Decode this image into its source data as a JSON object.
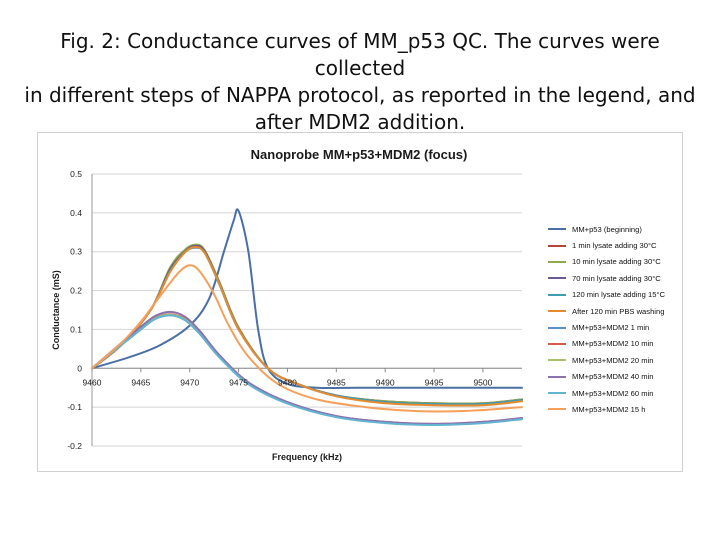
{
  "caption": {
    "line1": "Fig. 2: Conductance curves of MM_p53 QC. The curves were collected",
    "line2": "in different steps of NAPPA protocol, as reported in the legend, and",
    "line3": "after MDM2 addition."
  },
  "chart_data": {
    "type": "line",
    "title": "Nanoprobe MM+p53+MDM2 (focus)",
    "xlabel": "Frequency (kHz)",
    "ylabel": "Conductance (mS)",
    "xlim": [
      9460,
      9504
    ],
    "ylim": [
      -0.2,
      0.5
    ],
    "x_ticks": [
      9460,
      9465,
      9470,
      9475,
      9480,
      9485,
      9490,
      9495,
      9500
    ],
    "y_ticks": [
      0.5,
      0.4,
      0.3,
      0.2,
      0.1,
      0,
      -0.1,
      -0.2
    ],
    "x_tick_labels": [
      "9460",
      "9465",
      "9470",
      "9475",
      "9480",
      "9485",
      "9490",
      "9495",
      "9500"
    ],
    "y_tick_labels": [
      "0.5",
      "0.4",
      "0.3",
      "0.2",
      "0.1",
      "0",
      "-0.1",
      "-0.2"
    ],
    "legend_position": "right",
    "series": [
      {
        "name": "MM+p53 (beginning)",
        "color": "#4a6fa5",
        "x": [
          9460,
          9464,
          9467,
          9470,
          9472,
          9473.5,
          9474.5,
          9475,
          9476,
          9477,
          9478,
          9480,
          9483,
          9487,
          9491,
          9495,
          9500,
          9504
        ],
        "y": [
          0,
          0.03,
          0.06,
          0.11,
          0.18,
          0.3,
          0.38,
          0.405,
          0.3,
          0.1,
          0.0,
          -0.04,
          -0.05,
          -0.05,
          -0.05,
          -0.05,
          -0.05,
          -0.05
        ]
      },
      {
        "name": "1 min lysate adding 30°C",
        "color": "#b5443c",
        "x": [
          9460,
          9463,
          9466,
          9468,
          9469.5,
          9470.5,
          9471.5,
          9473,
          9475,
          9478,
          9481,
          9485,
          9490,
          9495,
          9500,
          9504
        ],
        "y": [
          0,
          0.06,
          0.15,
          0.25,
          0.3,
          0.312,
          0.3,
          0.22,
          0.1,
          0.0,
          -0.04,
          -0.07,
          -0.085,
          -0.09,
          -0.09,
          -0.08
        ]
      },
      {
        "name": "10 min lysate adding 30°C",
        "color": "#8eaa4a",
        "x": [
          9460,
          9463,
          9466,
          9468,
          9469.5,
          9470.5,
          9471.5,
          9473,
          9475,
          9478,
          9481,
          9485,
          9490,
          9495,
          9500,
          9504
        ],
        "y": [
          0,
          0.06,
          0.15,
          0.26,
          0.305,
          0.318,
          0.305,
          0.225,
          0.105,
          0.0,
          -0.04,
          -0.07,
          -0.085,
          -0.09,
          -0.09,
          -0.08
        ]
      },
      {
        "name": "70 min lysate adding 30°C",
        "color": "#6c5a92",
        "x": [
          9460,
          9463,
          9466,
          9468,
          9469.5,
          9470.5,
          9471.5,
          9473,
          9475,
          9478,
          9481,
          9485,
          9490,
          9495,
          9500,
          9504
        ],
        "y": [
          0,
          0.06,
          0.15,
          0.255,
          0.3,
          0.315,
          0.302,
          0.222,
          0.102,
          0.0,
          -0.04,
          -0.07,
          -0.087,
          -0.092,
          -0.092,
          -0.082
        ]
      },
      {
        "name": "120 min lysate adding 15°C",
        "color": "#3e9db5",
        "x": [
          9460,
          9463,
          9466,
          9468,
          9469.5,
          9470.5,
          9471.5,
          9473,
          9475,
          9478,
          9481,
          9485,
          9490,
          9495,
          9500,
          9504
        ],
        "y": [
          0,
          0.06,
          0.15,
          0.25,
          0.298,
          0.31,
          0.298,
          0.218,
          0.1,
          0.0,
          -0.04,
          -0.07,
          -0.087,
          -0.092,
          -0.092,
          -0.082
        ]
      },
      {
        "name": "After 120 min PBS washing",
        "color": "#e58b2e",
        "x": [
          9460,
          9463,
          9466,
          9468,
          9469.5,
          9470.5,
          9471.5,
          9473,
          9475,
          9478,
          9481,
          9485,
          9490,
          9495,
          9500,
          9504
        ],
        "y": [
          0,
          0.06,
          0.15,
          0.248,
          0.298,
          0.312,
          0.298,
          0.22,
          0.1,
          0.0,
          -0.04,
          -0.072,
          -0.09,
          -0.095,
          -0.095,
          -0.085
        ]
      },
      {
        "name": "MM+p53+MDM2 1 min",
        "color": "#5b8fc9",
        "x": [
          9460,
          9463,
          9465,
          9466.5,
          9468,
          9469.5,
          9471,
          9473,
          9476,
          9480,
          9485,
          9490,
          9495,
          9500,
          9504
        ],
        "y": [
          0,
          0.06,
          0.1,
          0.128,
          0.137,
          0.125,
          0.09,
          0.03,
          -0.04,
          -0.09,
          -0.125,
          -0.14,
          -0.145,
          -0.14,
          -0.13
        ]
      },
      {
        "name": "MM+p53+MDM2 10 min",
        "color": "#d65a4e",
        "x": [
          9460,
          9463,
          9465,
          9466.5,
          9468,
          9469.5,
          9471,
          9473,
          9476,
          9480,
          9485,
          9490,
          9495,
          9500,
          9504
        ],
        "y": [
          0,
          0.062,
          0.102,
          0.13,
          0.139,
          0.127,
          0.092,
          0.032,
          -0.038,
          -0.088,
          -0.123,
          -0.138,
          -0.143,
          -0.138,
          -0.128
        ]
      },
      {
        "name": "MM+p53+MDM2 20 min",
        "color": "#a9c16a",
        "x": [
          9460,
          9463,
          9465,
          9466.5,
          9468,
          9469.5,
          9471,
          9473,
          9476,
          9480,
          9485,
          9490,
          9495,
          9500,
          9504
        ],
        "y": [
          0,
          0.061,
          0.101,
          0.129,
          0.138,
          0.126,
          0.091,
          0.031,
          -0.039,
          -0.089,
          -0.124,
          -0.139,
          -0.144,
          -0.139,
          -0.129
        ]
      },
      {
        "name": "MM+p53+MDM2 40 min",
        "color": "#8a72b0",
        "x": [
          9460,
          9463,
          9465,
          9466.5,
          9468,
          9469.5,
          9471,
          9473,
          9476,
          9480,
          9485,
          9490,
          9495,
          9500,
          9504
        ],
        "y": [
          0,
          0.065,
          0.107,
          0.135,
          0.145,
          0.133,
          0.097,
          0.035,
          -0.036,
          -0.087,
          -0.123,
          -0.138,
          -0.143,
          -0.138,
          -0.128
        ]
      },
      {
        "name": "MM+p53+MDM2 60 min",
        "color": "#62b4d0",
        "x": [
          9460,
          9463,
          9465,
          9466.5,
          9468,
          9469.5,
          9471,
          9473,
          9476,
          9480,
          9485,
          9490,
          9495,
          9500,
          9504
        ],
        "y": [
          0,
          0.06,
          0.1,
          0.127,
          0.136,
          0.124,
          0.089,
          0.029,
          -0.041,
          -0.091,
          -0.126,
          -0.141,
          -0.146,
          -0.141,
          -0.131
        ]
      },
      {
        "name": "MM+p53+MDM2 15 h",
        "color": "#f5a05a",
        "x": [
          9460,
          9463,
          9465,
          9466.5,
          9468,
          9469,
          9470,
          9471,
          9472.5,
          9474,
          9476,
          9479,
          9483,
          9488,
          9493,
          9498,
          9504
        ],
        "y": [
          0,
          0.065,
          0.12,
          0.17,
          0.22,
          0.25,
          0.265,
          0.25,
          0.19,
          0.11,
          0.03,
          -0.04,
          -0.08,
          -0.1,
          -0.11,
          -0.11,
          -0.1
        ]
      }
    ]
  }
}
